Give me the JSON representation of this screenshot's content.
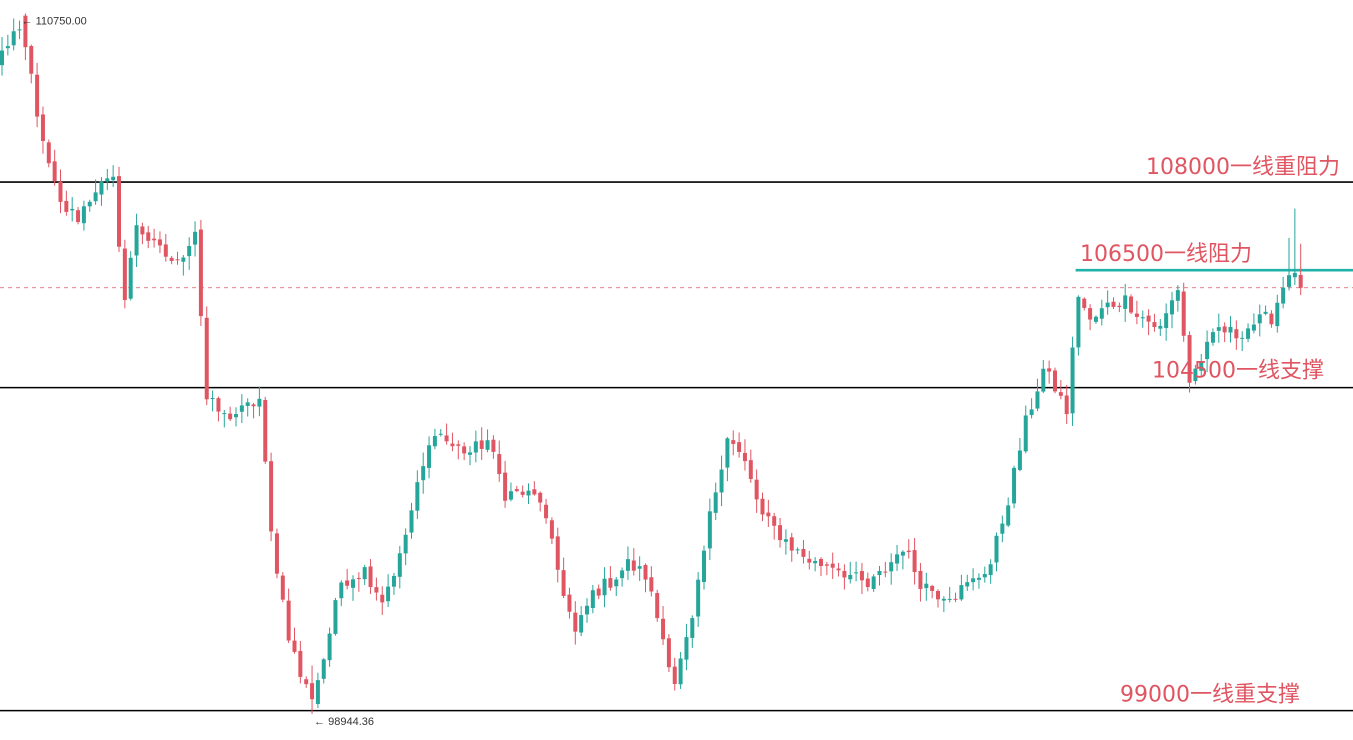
{
  "chart_data": {
    "type": "candlestick",
    "colors": {
      "up": "#26a69a",
      "down": "#e05562",
      "level_line": "#000000",
      "resistance_line": "#20b2aa",
      "label_text": "#e05562",
      "current_price_line": "#e05562",
      "extreme_text": "#333333"
    },
    "y_range": [
      98500,
      111100
    ],
    "grid": false,
    "levels": [
      {
        "price": 108000,
        "label": "108000一线重阻力",
        "style": "solid",
        "color": "#000000",
        "x_start": 0
      },
      {
        "price": 106500,
        "label": "106500一线阻力",
        "style": "solid",
        "color": "#20b2aa",
        "x_start": 0.795
      },
      {
        "price": 104500,
        "label": "104500一线支撑",
        "style": "solid",
        "color": "#000000",
        "x_start": 0
      },
      {
        "price": 99000,
        "label": "99000一线重支撑",
        "style": "solid",
        "color": "#000000",
        "x_start": 0
      }
    ],
    "current_price": 106200,
    "extremes": {
      "high": {
        "label": "110750.00",
        "price": 110750,
        "index": 3
      },
      "low": {
        "label": "98944.36",
        "price": 98944.36,
        "index": 53
      }
    },
    "anchors": [
      [
        0,
        110200
      ],
      [
        3,
        110700
      ],
      [
        5,
        109800
      ],
      [
        7,
        108600
      ],
      [
        10,
        107600
      ],
      [
        13,
        107400
      ],
      [
        16,
        107900
      ],
      [
        19,
        108000
      ],
      [
        21,
        106000
      ],
      [
        23,
        107300
      ],
      [
        26,
        106900
      ],
      [
        30,
        106600
      ],
      [
        33,
        107200
      ],
      [
        35,
        104300
      ],
      [
        38,
        104000
      ],
      [
        41,
        104100
      ],
      [
        44,
        104300
      ],
      [
        46,
        102000
      ],
      [
        49,
        100300
      ],
      [
        51,
        99600
      ],
      [
        53,
        99200
      ],
      [
        55,
        99900
      ],
      [
        58,
        101200
      ],
      [
        62,
        101400
      ],
      [
        65,
        100900
      ],
      [
        68,
        101600
      ],
      [
        71,
        102800
      ],
      [
        74,
        103800
      ],
      [
        77,
        103500
      ],
      [
        80,
        103400
      ],
      [
        83,
        103600
      ],
      [
        86,
        102700
      ],
      [
        89,
        102700
      ],
      [
        92,
        102600
      ],
      [
        95,
        101400
      ],
      [
        98,
        100300
      ],
      [
        101,
        101000
      ],
      [
        104,
        101200
      ],
      [
        107,
        101500
      ],
      [
        110,
        101300
      ],
      [
        112,
        100600
      ],
      [
        115,
        99500
      ],
      [
        118,
        100500
      ],
      [
        121,
        102300
      ],
      [
        124,
        103700
      ],
      [
        127,
        103200
      ],
      [
        130,
        102300
      ],
      [
        133,
        102000
      ],
      [
        136,
        101700
      ],
      [
        139,
        101500
      ],
      [
        142,
        101500
      ],
      [
        145,
        101300
      ],
      [
        148,
        101100
      ],
      [
        151,
        101400
      ],
      [
        154,
        101800
      ],
      [
        157,
        101200
      ],
      [
        160,
        101000
      ],
      [
        163,
        101000
      ],
      [
        166,
        101200
      ],
      [
        169,
        101500
      ],
      [
        172,
        102600
      ],
      [
        175,
        103900
      ],
      [
        178,
        104800
      ],
      [
        180,
        104500
      ],
      [
        182,
        104100
      ],
      [
        184,
        106100
      ],
      [
        186,
        105600
      ],
      [
        189,
        105900
      ],
      [
        192,
        106000
      ],
      [
        195,
        105700
      ],
      [
        198,
        105500
      ],
      [
        201,
        106200
      ],
      [
        203,
        104600
      ],
      [
        205,
        105000
      ],
      [
        208,
        105500
      ],
      [
        211,
        105400
      ],
      [
        214,
        105600
      ],
      [
        217,
        105700
      ],
      [
        220,
        106500
      ],
      [
        222,
        106200
      ]
    ]
  }
}
